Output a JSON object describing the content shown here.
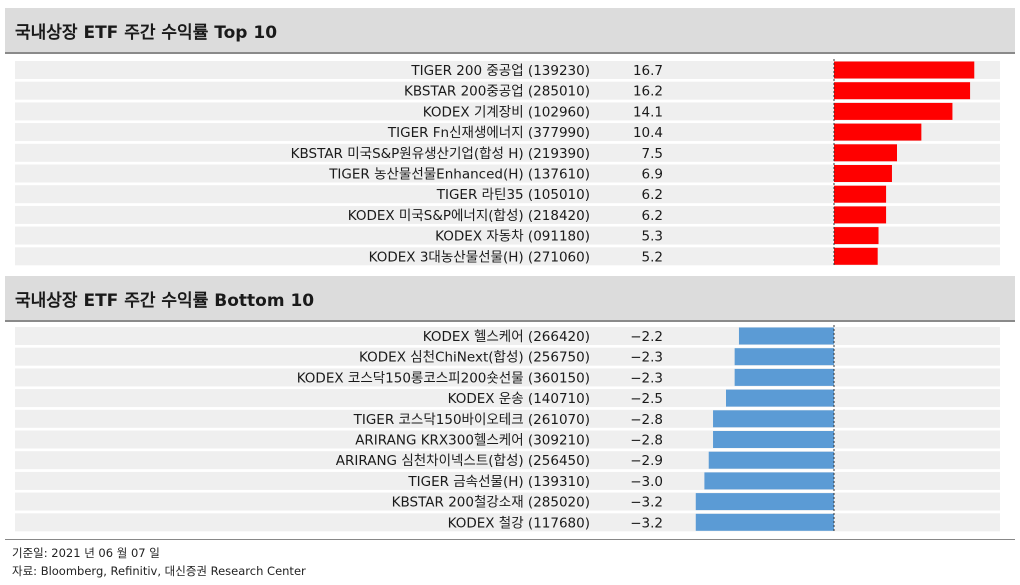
{
  "sections": {
    "top": {
      "title": "국내상장 ETF 주간 수익률 Top 10"
    },
    "bottom": {
      "title": "국내상장 ETF 주간 수익률 Bottom 10"
    }
  },
  "footer": {
    "date": "기준일: 2021 년 06 월 07 일",
    "source": "자료: Bloomberg, Refinitiv, 대신증권 Research Center"
  },
  "colors": {
    "positive_bar": "#ff0000",
    "negative_bar": "#5b9bd5"
  },
  "chart_data": [
    {
      "type": "bar",
      "orientation": "horizontal",
      "title": "국내상장 ETF 주간 수익률 Top 10",
      "categories": [
        "TIGER 200 중공업 (139230)",
        "KBSTAR 200중공업 (285010)",
        "KODEX 기계장비 (102960)",
        "TIGER Fn신재생에너지 (377990)",
        "KBSTAR 미국S&P원유생산기업(합성 H) (219390)",
        "TIGER 농산물선물Enhanced(H) (137610)",
        "TIGER 라틴35 (105010)",
        "KODEX 미국S&P에너지(합성) (218420)",
        "KODEX 자동차 (091180)",
        "KODEX 3대농산물선물(H) (271060)"
      ],
      "values": [
        16.7,
        16.2,
        14.1,
        10.4,
        7.5,
        6.9,
        6.2,
        6.2,
        5.3,
        5.2
      ],
      "value_labels": [
        "16.7",
        "16.2",
        "14.1",
        "10.4",
        "7.5",
        "6.9",
        "6.2",
        "6.2",
        "5.3",
        "5.2"
      ],
      "xlim": [
        0,
        17
      ]
    },
    {
      "type": "bar",
      "orientation": "horizontal",
      "title": "국내상장 ETF 주간 수익률 Bottom 10",
      "categories": [
        "KODEX 헬스케어 (266420)",
        "KODEX 심천ChiNext(합성) (256750)",
        "KODEX 코스닥150롱코스피200숏선물 (360150)",
        "KODEX 운송 (140710)",
        "TIGER 코스닥150바이오테크 (261070)",
        "ARIRANG KRX300헬스케어 (309210)",
        "ARIRANG 심천차이넥스트(합성) (256450)",
        "TIGER 금속선물(H) (139310)",
        "KBSTAR 200철강소재 (285020)",
        "KODEX 철강 (117680)"
      ],
      "values": [
        -2.2,
        -2.3,
        -2.3,
        -2.5,
        -2.8,
        -2.8,
        -2.9,
        -3.0,
        -3.2,
        -3.2
      ],
      "value_labels": [
        "−2.2",
        "−2.3",
        "−2.3",
        "−2.5",
        "−2.8",
        "−2.8",
        "−2.9",
        "−3.0",
        "−3.2",
        "−3.2"
      ],
      "xlim": [
        -3.2,
        0
      ]
    }
  ]
}
